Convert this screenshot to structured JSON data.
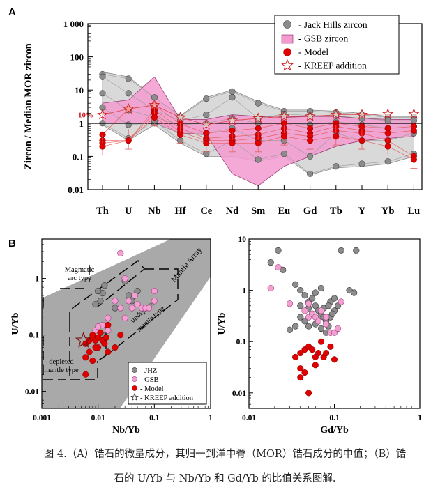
{
  "figure": {
    "panel_a_letter": "A",
    "panel_b_letter": "B",
    "caption_line1": "图 4.（A）锆石的微量成分，其归一到洋中脊（MOR）锆石成分的中值；（B）锆",
    "caption_line2": "石的 U/Yb 与 Nb/Yb 和 Gd/Yb 的比值关系图解."
  },
  "chart_data": [
    {
      "type": "line",
      "id": "spider",
      "ylabel": "Zircon / Median MOR zircon",
      "categories": [
        "Th",
        "U",
        "Nb",
        "Hf",
        "Ce",
        "Nd",
        "Sm",
        "Eu",
        "Gd",
        "Tb",
        "Y",
        "Yb",
        "Lu"
      ],
      "ylim": [
        0.01,
        1000
      ],
      "yticks": [
        "0.01",
        "0.1",
        "1",
        "10",
        "100",
        "1 000"
      ],
      "reference_line": 1,
      "annotation": "10%",
      "legend": [
        {
          "label": "- Jack Hills zircon",
          "symbol": "grey-circle"
        },
        {
          "label": "- GSB zircon",
          "symbol": "pink-rect"
        },
        {
          "label": "- Model",
          "symbol": "red-circle"
        },
        {
          "label": "- KREEP addition",
          "symbol": "star"
        }
      ],
      "jack_hills_range": {
        "upper": [
          35,
          25,
          6,
          1.7,
          6,
          10,
          4.5,
          2.5,
          2.5,
          2.3,
          2.0,
          1.6,
          1.6
        ],
        "lower": [
          0.9,
          0.3,
          0.9,
          0.25,
          0.1,
          0.1,
          0.07,
          0.1,
          0.028,
          0.045,
          0.05,
          0.06,
          0.1
        ]
      },
      "gsb_range": {
        "upper": [
          4,
          5,
          25,
          1.3,
          1.3,
          1.8,
          1.6,
          1.5,
          1.6,
          1.6,
          1.4,
          1.3,
          1.3
        ],
        "lower": [
          1.0,
          1.0,
          1.0,
          0.5,
          0.45,
          0.03,
          0.013,
          0.05,
          0.1,
          0.2,
          0.3,
          0.35,
          0.4
        ]
      },
      "jack_hills_points": [
        [
          30,
          22,
          6,
          1.6,
          5.5,
          9,
          4,
          2.3,
          2.3,
          2.1,
          1.8,
          1.5,
          1.5
        ],
        [
          25,
          8,
          2.5,
          1.2,
          1.8,
          6,
          1.4,
          1.9,
          1.7,
          1.7,
          1.4,
          1.2,
          1.2
        ],
        [
          8,
          2.5,
          1.5,
          0.9,
          1.0,
          1.4,
          1.0,
          1.0,
          0.9,
          1.1,
          0.9,
          0.7,
          0.8
        ],
        [
          3,
          0.9,
          1.0,
          0.5,
          0.5,
          0.7,
          0.3,
          0.3,
          0.1,
          0.5,
          0.3,
          0.3,
          0.5
        ],
        [
          1,
          0.35,
          1.2,
          0.3,
          0.12,
          0.3,
          0.08,
          0.12,
          0.03,
          0.05,
          0.06,
          0.07,
          0.12
        ]
      ],
      "model_points": [
        [
          0.45,
          2.7,
          3.5,
          0.95,
          0.5,
          0.6,
          0.7,
          1.0,
          0.7,
          1.0,
          0.8,
          0.7,
          0.8
        ],
        [
          0.3,
          0.3,
          2.5,
          0.7,
          0.35,
          0.4,
          0.45,
          0.7,
          0.5,
          0.8,
          0.6,
          0.5,
          0.6
        ],
        [
          0.25,
          0.3,
          2.0,
          0.55,
          0.3,
          0.3,
          0.35,
          0.5,
          0.4,
          0.6,
          0.5,
          0.3,
          0.1
        ],
        [
          0.2,
          0.3,
          1.5,
          0.45,
          0.25,
          0.25,
          0.25,
          0.4,
          0.3,
          0.4,
          0.3,
          0.2,
          0.08
        ]
      ],
      "kreep_points": [
        1.8,
        2.7,
        3.5,
        1.5,
        0.9,
        1.2,
        1.4,
        1.6,
        1.6,
        1.8,
        1.8,
        1.9,
        1.9
      ]
    },
    {
      "type": "scatter",
      "id": "nbyb",
      "xlabel": "Nb/Yb",
      "ylabel": "U/Yb",
      "xlim": [
        0.001,
        1
      ],
      "ylim": [
        0.005,
        5
      ],
      "xticks": [
        "0.001",
        "0.01",
        "0.1",
        "1"
      ],
      "yticks": [
        "0.01",
        "0.1",
        "1"
      ],
      "field_labels": {
        "mantle_array": "Mantle Array",
        "magmatic_line1": "Magmatic",
        "magmatic_line2": "arc type",
        "undepleted_line1": "undepleted",
        "undepleted_line2": "mantle type",
        "depleted_line1": "depleted",
        "depleted_line2": "mantle type"
      },
      "legend": [
        {
          "label": "- JHZ",
          "symbol": "grey-circle"
        },
        {
          "label": "- GSB",
          "symbol": "pink-circle"
        },
        {
          "label": "- Model",
          "symbol": "red-circle"
        },
        {
          "label": "- KREEP addition",
          "symbol": "star"
        }
      ],
      "jhz": [
        [
          0.009,
          0.35
        ],
        [
          0.011,
          0.4
        ],
        [
          0.012,
          0.55
        ],
        [
          0.013,
          0.75
        ],
        [
          0.01,
          0.6
        ],
        [
          0.03,
          0.9
        ],
        [
          0.035,
          0.5
        ],
        [
          0.04,
          0.4
        ],
        [
          0.012,
          0.1
        ],
        [
          0.02,
          0.3
        ],
        [
          0.05,
          0.6
        ]
      ],
      "gsb": [
        [
          0.025,
          2.8
        ],
        [
          0.03,
          1.0
        ],
        [
          0.035,
          0.4
        ],
        [
          0.04,
          0.3
        ],
        [
          0.05,
          0.35
        ],
        [
          0.06,
          0.3
        ],
        [
          0.07,
          0.3
        ],
        [
          0.1,
          0.6
        ],
        [
          0.1,
          0.4
        ],
        [
          0.02,
          0.4
        ],
        [
          0.045,
          0.5
        ],
        [
          0.015,
          0.2
        ],
        [
          0.012,
          0.15
        ],
        [
          0.009,
          0.12
        ],
        [
          0.01,
          0.14
        ],
        [
          0.015,
          0.12
        ],
        [
          0.025,
          0.3
        ],
        [
          0.03,
          0.2
        ],
        [
          0.08,
          0.3
        ]
      ],
      "model": [
        [
          0.006,
          0.07
        ],
        [
          0.007,
          0.08
        ],
        [
          0.008,
          0.1
        ],
        [
          0.008,
          0.09
        ],
        [
          0.009,
          0.08
        ],
        [
          0.01,
          0.06
        ],
        [
          0.01,
          0.09
        ],
        [
          0.012,
          0.08
        ],
        [
          0.013,
          0.07
        ],
        [
          0.015,
          0.05
        ],
        [
          0.015,
          0.15
        ],
        [
          0.02,
          0.06
        ],
        [
          0.025,
          0.1
        ],
        [
          0.007,
          0.05
        ],
        [
          0.006,
          0.04
        ],
        [
          0.008,
          0.035
        ],
        [
          0.006,
          0.02
        ],
        [
          0.009,
          0.06
        ],
        [
          0.011,
          0.11
        ],
        [
          0.014,
          0.09
        ]
      ],
      "kreep": [
        0.0055,
        0.08
      ]
    },
    {
      "type": "scatter",
      "id": "gdyb",
      "xlabel": "Gd/Yb",
      "ylabel": "U/Yb",
      "xlim": [
        0.01,
        1
      ],
      "ylim": [
        0.005,
        10
      ],
      "xticks": [
        "0.01",
        "0.1",
        "1"
      ],
      "yticks": [
        "0.01",
        "0.1",
        "1",
        "10"
      ],
      "jhz": [
        [
          0.018,
          3.5
        ],
        [
          0.022,
          6
        ],
        [
          0.025,
          2.5
        ],
        [
          0.035,
          1.3
        ],
        [
          0.04,
          1.0
        ],
        [
          0.045,
          0.8
        ],
        [
          0.05,
          0.6
        ],
        [
          0.055,
          0.7
        ],
        [
          0.06,
          0.5
        ],
        [
          0.065,
          0.4
        ],
        [
          0.07,
          0.35
        ],
        [
          0.075,
          0.3
        ],
        [
          0.08,
          0.25
        ],
        [
          0.085,
          0.2
        ],
        [
          0.09,
          0.3
        ],
        [
          0.1,
          0.4
        ],
        [
          0.11,
          0.5
        ],
        [
          0.045,
          0.25
        ],
        [
          0.05,
          0.2
        ],
        [
          0.04,
          0.3
        ],
        [
          0.035,
          0.2
        ],
        [
          0.03,
          0.17
        ],
        [
          0.06,
          0.22
        ],
        [
          0.07,
          0.18
        ],
        [
          0.08,
          0.15
        ],
        [
          0.09,
          0.6
        ],
        [
          0.1,
          0.7
        ],
        [
          0.12,
          6
        ],
        [
          0.15,
          1
        ],
        [
          0.17,
          0.9
        ],
        [
          0.18,
          6
        ],
        [
          0.06,
          0.9
        ],
        [
          0.07,
          1.1
        ],
        [
          0.055,
          0.35
        ],
        [
          0.065,
          0.28
        ],
        [
          0.075,
          0.45
        ],
        [
          0.085,
          0.5
        ],
        [
          0.095,
          0.35
        ],
        [
          0.05,
          0.45
        ],
        [
          0.04,
          0.5
        ]
      ],
      "gsb": [
        [
          0.018,
          1.1
        ],
        [
          0.022,
          2.8
        ],
        [
          0.03,
          0.55
        ],
        [
          0.045,
          0.4
        ],
        [
          0.05,
          0.3
        ],
        [
          0.055,
          0.35
        ],
        [
          0.06,
          0.3
        ],
        [
          0.065,
          0.25
        ],
        [
          0.08,
          0.3
        ],
        [
          0.09,
          0.15
        ],
        [
          0.1,
          0.15
        ],
        [
          0.11,
          0.18
        ],
        [
          0.12,
          0.6
        ],
        [
          0.05,
          0.55
        ],
        [
          0.07,
          0.4
        ],
        [
          0.08,
          0.22
        ]
      ],
      "model": [
        [
          0.035,
          0.05
        ],
        [
          0.04,
          0.06
        ],
        [
          0.045,
          0.07
        ],
        [
          0.05,
          0.08
        ],
        [
          0.055,
          0.07
        ],
        [
          0.06,
          0.05
        ],
        [
          0.065,
          0.06
        ],
        [
          0.07,
          0.1
        ],
        [
          0.075,
          0.05
        ],
        [
          0.08,
          0.06
        ],
        [
          0.04,
          0.03
        ],
        [
          0.045,
          0.025
        ],
        [
          0.04,
          0.02
        ],
        [
          0.05,
          0.01
        ],
        [
          0.06,
          0.035
        ],
        [
          0.1,
          0.045
        ],
        [
          0.09,
          0.08
        ]
      ]
    }
  ]
}
